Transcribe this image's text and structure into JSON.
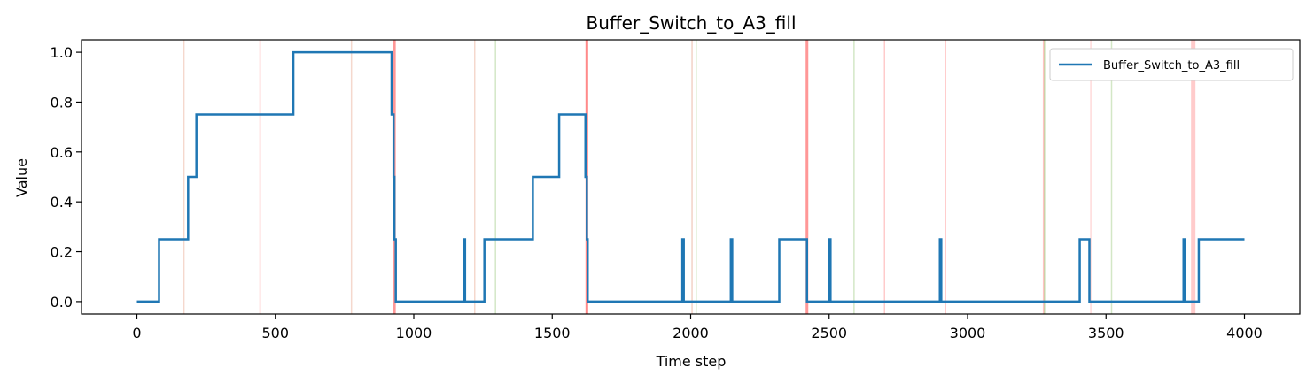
{
  "chart_data": {
    "type": "line",
    "title": "Buffer_Switch_to_A3_fill",
    "xlabel": "Time step",
    "ylabel": "Value",
    "xlim": [
      -200,
      4200
    ],
    "ylim": [
      -0.05,
      1.05
    ],
    "x_ticks": [
      0,
      500,
      1000,
      1500,
      2000,
      2500,
      3000,
      3500,
      4000
    ],
    "x_tick_labels": [
      "0",
      "500",
      "1000",
      "1500",
      "2000",
      "2500",
      "3000",
      "3500",
      "4000"
    ],
    "y_ticks": [
      0.0,
      0.2,
      0.4,
      0.6,
      0.8,
      1.0
    ],
    "y_tick_labels": [
      "0.0",
      "0.2",
      "0.4",
      "0.6",
      "0.8",
      "1.0"
    ],
    "grid": false,
    "legend_position": "top-right",
    "series": [
      {
        "name": "Buffer_Switch_to_A3_fill",
        "color": "#1f77b4",
        "step": true,
        "x": [
          0,
          80,
          185,
          215,
          565,
          920,
          927,
          930,
          935,
          1180,
          1185,
          1190,
          1255,
          1430,
          1525,
          1620,
          1625,
          1628,
          1632,
          1970,
          1975,
          1980,
          2145,
          2150,
          2155,
          2320,
          2420,
          2500,
          2505,
          2510,
          2900,
          2905,
          2910,
          3405,
          3440,
          3780,
          3785,
          3790,
          3835,
          4000
        ],
        "y": [
          0,
          0.25,
          0.5,
          0.75,
          1.0,
          0.75,
          0.5,
          0.25,
          0,
          0.25,
          0,
          0,
          0.25,
          0.5,
          0.75,
          0.5,
          0.25,
          0,
          0,
          0.25,
          0,
          0,
          0.25,
          0,
          0,
          0.25,
          0,
          0.25,
          0,
          0,
          0.25,
          0,
          0,
          0.25,
          0,
          0.25,
          0,
          0,
          0.25,
          0.25
        ]
      }
    ],
    "event_lines": [
      {
        "x": 170,
        "color": "#e8a890",
        "opacity": 0.45,
        "width": 1.5
      },
      {
        "x": 445,
        "color": "#ff6b6b",
        "opacity": 0.45,
        "width": 1.5
      },
      {
        "x": 775,
        "color": "#e8a890",
        "opacity": 0.45,
        "width": 1.5
      },
      {
        "x": 930,
        "color": "#ff6b6b",
        "opacity": 0.7,
        "width": 3
      },
      {
        "x": 1220,
        "color": "#e8a890",
        "opacity": 0.45,
        "width": 1.5
      },
      {
        "x": 1295,
        "color": "#a8d08d",
        "opacity": 0.5,
        "width": 1.5
      },
      {
        "x": 1625,
        "color": "#ff6b6b",
        "opacity": 0.8,
        "width": 3
      },
      {
        "x": 2005,
        "color": "#e8a890",
        "opacity": 0.5,
        "width": 1.5
      },
      {
        "x": 2020,
        "color": "#a8d08d",
        "opacity": 0.5,
        "width": 1.5
      },
      {
        "x": 2420,
        "color": "#ff6b6b",
        "opacity": 0.7,
        "width": 3
      },
      {
        "x": 2590,
        "color": "#a8d08d",
        "opacity": 0.5,
        "width": 1.5
      },
      {
        "x": 2700,
        "color": "#ff6b6b",
        "opacity": 0.35,
        "width": 1.5
      },
      {
        "x": 2920,
        "color": "#ff6b6b",
        "opacity": 0.45,
        "width": 1.5
      },
      {
        "x": 3275,
        "color": "#ff6b6b",
        "opacity": 0.4,
        "width": 2
      },
      {
        "x": 3278,
        "color": "#a8d08d",
        "opacity": 0.6,
        "width": 1.5
      },
      {
        "x": 3445,
        "color": "#ff6b6b",
        "opacity": 0.25,
        "width": 1.5
      },
      {
        "x": 3520,
        "color": "#a8d08d",
        "opacity": 0.5,
        "width": 1.5
      },
      {
        "x": 3815,
        "color": "#ff6b6b",
        "opacity": 0.35,
        "width": 5
      }
    ]
  }
}
